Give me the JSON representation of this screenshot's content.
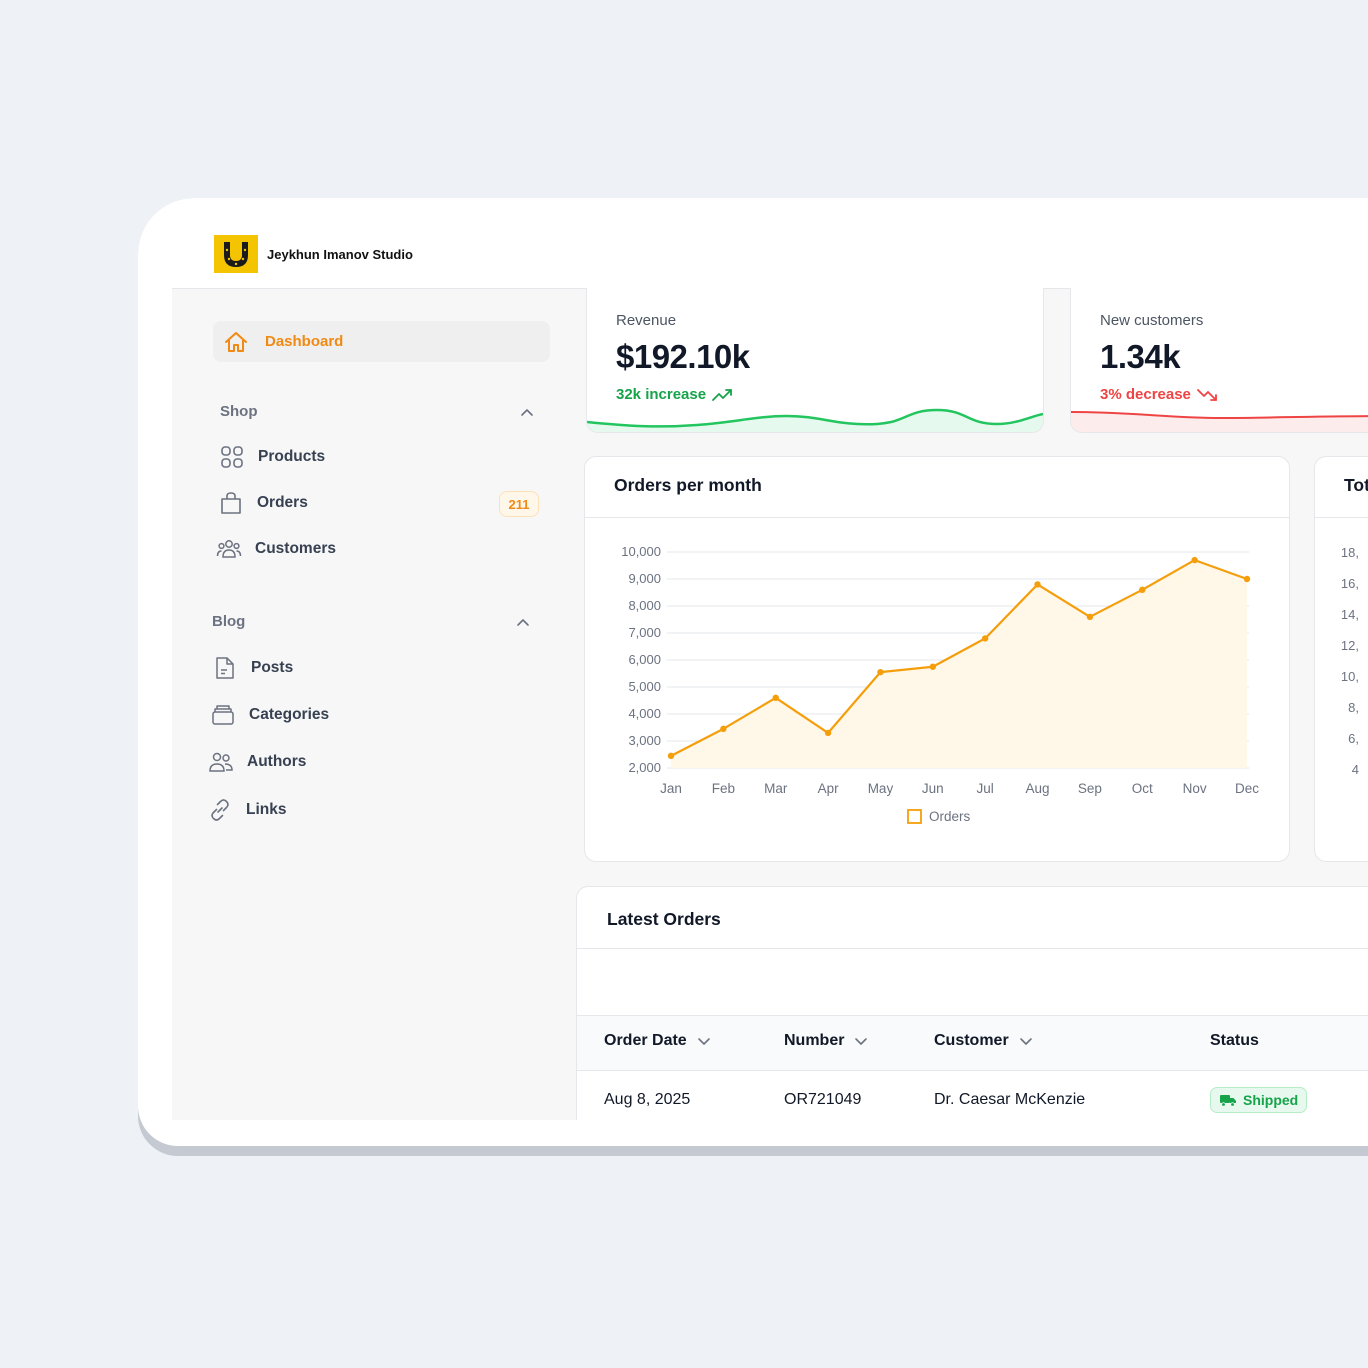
{
  "app": {
    "brand": "Jeykhun Imanov Studio"
  },
  "sidebar": {
    "active": {
      "label": "Dashboard",
      "icon": "home-icon"
    },
    "groups": [
      {
        "label": "Shop",
        "items": [
          {
            "label": "Products",
            "icon": "grid-icon"
          },
          {
            "label": "Orders",
            "icon": "shopping-bag-icon",
            "badge": "211"
          },
          {
            "label": "Customers",
            "icon": "users-icon"
          }
        ]
      },
      {
        "label": "Blog",
        "items": [
          {
            "label": "Posts",
            "icon": "document-icon"
          },
          {
            "label": "Categories",
            "icon": "folder-icon"
          },
          {
            "label": "Authors",
            "icon": "user-group-icon"
          },
          {
            "label": "Links",
            "icon": "link-icon"
          }
        ]
      }
    ]
  },
  "stats": [
    {
      "label": "Revenue",
      "value": "$192.10k",
      "description": "32k increase",
      "trend": "up",
      "color": "#22c55e"
    },
    {
      "label": "New customers",
      "value": "1.34k",
      "description": "3% decrease",
      "trend": "down",
      "color": "#ef4444"
    }
  ],
  "chart_card": {
    "title": "Orders per month"
  },
  "partial_card": {
    "title": "Tot",
    "ticks": [
      "18,",
      "16,",
      "14,",
      "12,",
      "10,",
      "8,",
      "6,",
      "4"
    ]
  },
  "chart_data": {
    "type": "line",
    "categories": [
      "Jan",
      "Feb",
      "Mar",
      "Apr",
      "May",
      "Jun",
      "Jul",
      "Aug",
      "Sep",
      "Oct",
      "Nov",
      "Dec"
    ],
    "series": [
      {
        "name": "Orders",
        "values": [
          2450,
          3450,
          4600,
          3300,
          5550,
          5750,
          6800,
          8800,
          7600,
          8600,
          9700,
          9000
        ],
        "color": "#f59e0b",
        "fill": "#fff7e8"
      }
    ],
    "yticks": [
      "2,000",
      "3,000",
      "4,000",
      "5,000",
      "6,000",
      "7,000",
      "8,000",
      "9,000",
      "10,000"
    ],
    "ylim": [
      2000,
      10000
    ],
    "grid": true,
    "legend": "bottom"
  },
  "orders_table": {
    "title": "Latest Orders",
    "columns": [
      {
        "label": "Order Date",
        "sortable": true
      },
      {
        "label": "Number",
        "sortable": true
      },
      {
        "label": "Customer",
        "sortable": true
      },
      {
        "label": "Status",
        "sortable": false
      }
    ],
    "rows": [
      {
        "date": "Aug 8, 2025",
        "number": "OR721049",
        "customer": "Dr. Caesar McKenzie",
        "status": "Shipped",
        "status_icon": "truck-icon"
      }
    ]
  }
}
